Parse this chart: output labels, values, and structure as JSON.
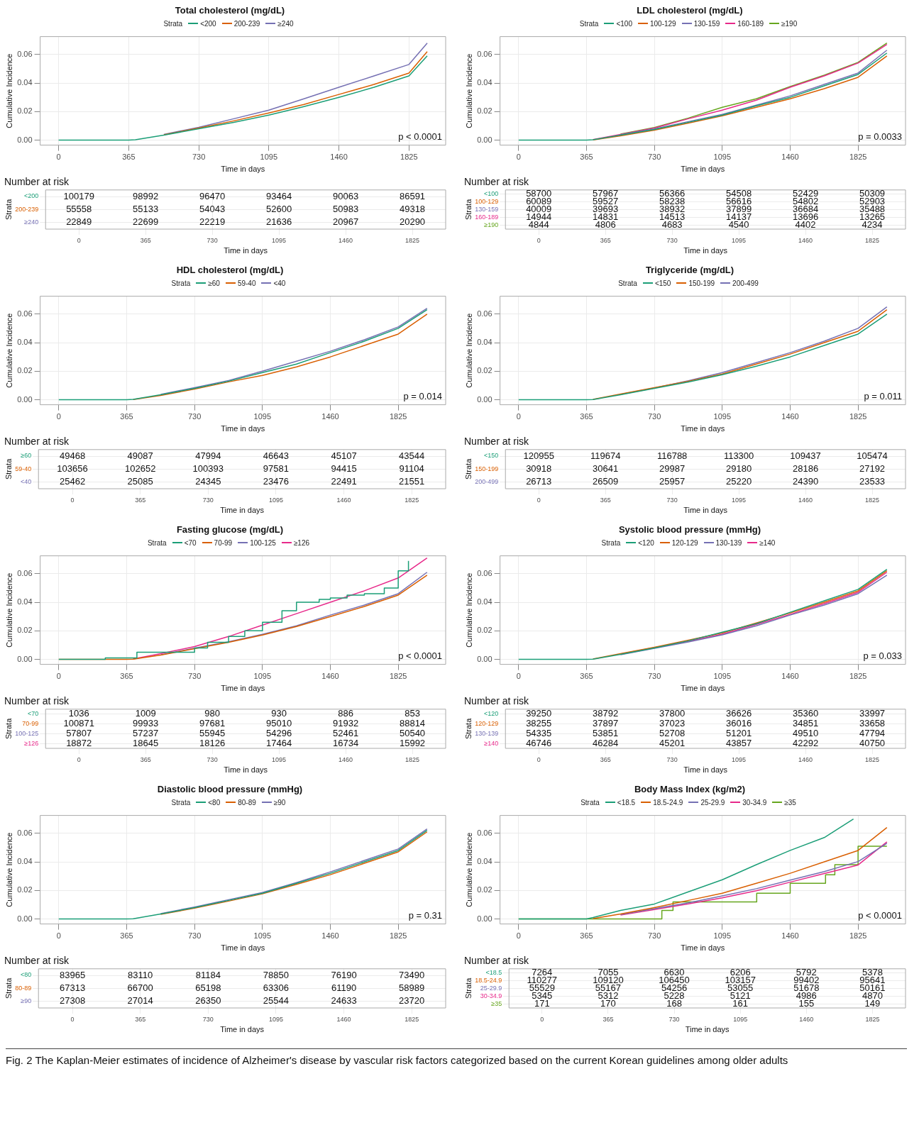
{
  "chart_data": [
    {
      "type": "line",
      "title": "Total cholesterol (mg/dL)",
      "legend_title": "Strata",
      "legend": "top",
      "xlabel": "Time in days",
      "ylabel": "Cumulative Incidence",
      "annotations": [
        "p < 0.0001"
      ],
      "grid": true,
      "xlim": [
        -96,
        2016
      ],
      "xticks": [
        0,
        365,
        730,
        1095,
        1460,
        1825
      ],
      "ylim": [
        -0.0035,
        0.0725
      ],
      "yticks": [
        {
          "value": 0,
          "label": "0.00"
        },
        {
          "value": 0.02,
          "label": "0.02"
        },
        {
          "value": 0.04,
          "label": "0.04"
        },
        {
          "value": 0.06,
          "label": "0.06"
        }
      ],
      "x": [
        0,
        365,
        400,
        548,
        730,
        913,
        1095,
        1278,
        1460,
        1643,
        1825,
        1920
      ],
      "series": [
        {
          "name": "<200",
          "color": "#1b9e77",
          "values": [
            0,
            0,
            0.0003,
            0.0035,
            0.008,
            0.0125,
            0.0175,
            0.0235,
            0.03,
            0.037,
            0.045,
            0.059
          ]
        },
        {
          "name": "200-239",
          "color": "#d95f02",
          "values": [
            null,
            null,
            null,
            0.0037,
            0.0085,
            0.0135,
            0.019,
            0.025,
            0.032,
            0.039,
            0.047,
            0.062
          ]
        },
        {
          "name": "≥240",
          "color": "#7570b3",
          "values": [
            null,
            null,
            null,
            0.004,
            0.009,
            0.015,
            0.021,
            0.029,
            0.037,
            0.045,
            0.053,
            0.068
          ]
        }
      ]
    },
    {
      "type": "heatmap",
      "title": "Number at risk",
      "xlabel": "Time in days",
      "ylabel": "Strata",
      "grid": true,
      "data_labels": true,
      "categories": [
        "0",
        "365",
        "730",
        "1095",
        "1460",
        "1825"
      ],
      "y_categories": [
        "<200",
        "200-239",
        "≥240"
      ],
      "colors": [
        "#1b9e77",
        "#d95f02",
        "#7570b3"
      ],
      "cells": [
        [
          100179,
          98992,
          96470,
          93464,
          90063,
          86591
        ],
        [
          55558,
          55133,
          54043,
          52600,
          50983,
          49318
        ],
        [
          22849,
          22699,
          22219,
          21636,
          20967,
          20290
        ]
      ]
    },
    {
      "type": "line",
      "title": "LDL cholesterol (mg/dL)",
      "legend_title": "Strata",
      "legend": "top",
      "xlabel": "Time in days",
      "ylabel": "Cumulative Incidence",
      "annotations": [
        "p = 0.0033"
      ],
      "grid": true,
      "xlim": [
        -100,
        2080
      ],
      "xticks": [
        0,
        365,
        730,
        1095,
        1460,
        1825
      ],
      "ylim": [
        -0.0035,
        0.0725
      ],
      "yticks": [
        {
          "value": 0,
          "label": "0.00"
        },
        {
          "value": 0.02,
          "label": "0.02"
        },
        {
          "value": 0.04,
          "label": "0.04"
        },
        {
          "value": 0.06,
          "label": "0.06"
        }
      ],
      "x": [
        0,
        365,
        400,
        548,
        730,
        913,
        1095,
        1278,
        1460,
        1643,
        1825,
        1980
      ],
      "series": [
        {
          "name": "<100",
          "color": "#1b9e77",
          "values": [
            0,
            0,
            0.0003,
            0.0035,
            0.0075,
            0.0125,
            0.0175,
            0.024,
            0.03,
            0.038,
            0.046,
            0.061
          ]
        },
        {
          "name": "100-129",
          "color": "#d95f02",
          "values": [
            null,
            null,
            0.0002,
            0.003,
            0.007,
            0.012,
            0.017,
            0.023,
            0.029,
            0.036,
            0.044,
            0.059
          ]
        },
        {
          "name": "130-159",
          "color": "#7570b3",
          "values": [
            null,
            null,
            null,
            0.0037,
            0.0078,
            0.013,
            0.018,
            0.0245,
            0.031,
            0.039,
            0.047,
            0.063
          ]
        },
        {
          "name": "160-189",
          "color": "#e7298a",
          "values": [
            null,
            null,
            0.0004,
            0.004,
            0.0085,
            0.015,
            0.021,
            0.028,
            0.037,
            0.045,
            0.054,
            0.067
          ]
        },
        {
          "name": "≥190",
          "color": "#66a61e",
          "values": [
            null,
            null,
            null,
            0.0042,
            0.0088,
            0.0155,
            0.023,
            0.029,
            0.0375,
            0.0455,
            0.0545,
            0.068
          ]
        }
      ]
    },
    {
      "type": "heatmap",
      "title": "Number at risk",
      "xlabel": "Time in days",
      "ylabel": "Strata",
      "grid": true,
      "data_labels": true,
      "categories": [
        "0",
        "365",
        "730",
        "1095",
        "1460",
        "1825"
      ],
      "y_categories": [
        "<100",
        "100-129",
        "130-159",
        "160-189",
        "≥190"
      ],
      "colors": [
        "#1b9e77",
        "#d95f02",
        "#7570b3",
        "#e7298a",
        "#66a61e"
      ],
      "cells": [
        [
          58700,
          57967,
          56366,
          54508,
          52429,
          50309
        ],
        [
          60089,
          59527,
          58238,
          56616,
          54802,
          52903
        ],
        [
          40009,
          39693,
          38932,
          37899,
          36684,
          35488
        ],
        [
          14944,
          14831,
          14513,
          14137,
          13696,
          13265
        ],
        [
          4844,
          4806,
          4683,
          4540,
          4402,
          4234
        ]
      ]
    },
    {
      "type": "line",
      "title": "HDL cholesterol (mg/dL)",
      "legend_title": "Strata",
      "legend": "top",
      "xlabel": "Time in days",
      "ylabel": "Cumulative Incidence",
      "annotations": [
        "p = 0.014"
      ],
      "grid": true,
      "xlim": [
        -100,
        2080
      ],
      "xticks": [
        0,
        365,
        730,
        1095,
        1460,
        1825
      ],
      "ylim": [
        -0.0035,
        0.0725
      ],
      "yticks": [
        {
          "value": 0,
          "label": "0.00"
        },
        {
          "value": 0.02,
          "label": "0.02"
        },
        {
          "value": 0.04,
          "label": "0.04"
        },
        {
          "value": 0.06,
          "label": "0.06"
        }
      ],
      "x": [
        0,
        365,
        400,
        548,
        730,
        913,
        1095,
        1278,
        1460,
        1643,
        1825,
        1980
      ],
      "series": [
        {
          "name": "≥60",
          "color": "#1b9e77",
          "values": [
            0,
            0,
            0.0003,
            0.0035,
            0.008,
            0.013,
            0.019,
            0.025,
            0.033,
            0.041,
            0.05,
            0.063
          ]
        },
        {
          "name": "59-40",
          "color": "#d95f02",
          "values": [
            null,
            null,
            0.0002,
            0.003,
            0.0075,
            0.0125,
            0.017,
            0.023,
            0.03,
            0.038,
            0.046,
            0.06
          ]
        },
        {
          "name": "<40",
          "color": "#7570b3",
          "values": [
            null,
            null,
            null,
            0.0038,
            0.0085,
            0.0135,
            0.02,
            0.027,
            0.034,
            0.042,
            0.051,
            0.064
          ]
        }
      ]
    },
    {
      "type": "heatmap",
      "title": "Number at risk",
      "xlabel": "Time in days",
      "ylabel": "Strata",
      "grid": true,
      "data_labels": true,
      "categories": [
        "0",
        "365",
        "730",
        "1095",
        "1460",
        "1825"
      ],
      "y_categories": [
        "≥60",
        "59-40",
        "<40"
      ],
      "colors": [
        "#1b9e77",
        "#d95f02",
        "#7570b3"
      ],
      "cells": [
        [
          49468,
          49087,
          47994,
          46643,
          45107,
          43544
        ],
        [
          103656,
          102652,
          100393,
          97581,
          94415,
          91104
        ],
        [
          25462,
          25085,
          24345,
          23476,
          22491,
          21551
        ]
      ]
    },
    {
      "type": "line",
      "title": "Triglyceride (mg/dL)",
      "legend_title": "Strata",
      "legend": "top",
      "xlabel": "Time in days",
      "ylabel": "Cumulative Incidence",
      "annotations": [
        "p = 0.011"
      ],
      "grid": true,
      "xlim": [
        -100,
        2080
      ],
      "xticks": [
        0,
        365,
        730,
        1095,
        1460,
        1825
      ],
      "ylim": [
        -0.0035,
        0.0725
      ],
      "yticks": [
        {
          "value": 0,
          "label": "0.00"
        },
        {
          "value": 0.02,
          "label": "0.02"
        },
        {
          "value": 0.04,
          "label": "0.04"
        },
        {
          "value": 0.06,
          "label": "0.06"
        }
      ],
      "x": [
        0,
        365,
        400,
        548,
        730,
        913,
        1095,
        1278,
        1460,
        1643,
        1825,
        1980
      ],
      "series": [
        {
          "name": "<150",
          "color": "#1b9e77",
          "values": [
            0,
            0,
            0.0002,
            0.0035,
            0.008,
            0.0125,
            0.0175,
            0.0235,
            0.03,
            0.038,
            0.046,
            0.06
          ]
        },
        {
          "name": "150-199",
          "color": "#d95f02",
          "values": [
            null,
            null,
            0.0003,
            0.004,
            0.0085,
            0.013,
            0.018,
            0.025,
            0.032,
            0.04,
            0.048,
            0.063
          ]
        },
        {
          "name": "200-499",
          "color": "#7570b3",
          "values": [
            null,
            null,
            null,
            0.0037,
            0.0082,
            0.0133,
            0.019,
            0.026,
            0.033,
            0.041,
            0.05,
            0.065
          ]
        }
      ]
    },
    {
      "type": "heatmap",
      "title": "Number at risk",
      "xlabel": "Time in days",
      "ylabel": "Strata",
      "grid": true,
      "data_labels": true,
      "categories": [
        "0",
        "365",
        "730",
        "1095",
        "1460",
        "1825"
      ],
      "y_categories": [
        "<150",
        "150-199",
        "200-499"
      ],
      "colors": [
        "#1b9e77",
        "#d95f02",
        "#7570b3"
      ],
      "cells": [
        [
          120955,
          119674,
          116788,
          113300,
          109437,
          105474
        ],
        [
          30918,
          30641,
          29987,
          29180,
          28186,
          27192
        ],
        [
          26713,
          26509,
          25957,
          25220,
          24390,
          23533
        ]
      ]
    },
    {
      "type": "line",
      "title": "Fasting glucose (mg/dL)",
      "legend_title": "Strata",
      "legend": "top",
      "xlabel": "Time in days",
      "ylabel": "Cumulative Incidence",
      "annotations": [
        "p < 0.0001"
      ],
      "grid": true,
      "xlim": [
        -100,
        2080
      ],
      "xticks": [
        0,
        365,
        730,
        1095,
        1460,
        1825
      ],
      "ylim": [
        -0.0035,
        0.0725
      ],
      "yticks": [
        {
          "value": 0,
          "label": "0.00"
        },
        {
          "value": 0.02,
          "label": "0.02"
        },
        {
          "value": 0.04,
          "label": "0.04"
        },
        {
          "value": 0.06,
          "label": "0.06"
        }
      ],
      "x": [
        0,
        365,
        400,
        548,
        730,
        913,
        1095,
        1278,
        1460,
        1643,
        1825,
        1980
      ],
      "series": [
        {
          "name": "<70",
          "color": "#1b9e77",
          "type": "step",
          "x": [
            0,
            250,
            420,
            550,
            730,
            800,
            913,
            1000,
            1095,
            1200,
            1278,
            1400,
            1460,
            1550,
            1643,
            1750,
            1825,
            1880
          ],
          "values": [
            0,
            0.001,
            0.005,
            0.005,
            0.008,
            0.012,
            0.016,
            0.02,
            0.026,
            0.034,
            0.04,
            0.042,
            0.043,
            0.045,
            0.046,
            0.05,
            0.062,
            0.069
          ]
        },
        {
          "name": "70-99",
          "color": "#d95f02",
          "values": [
            0,
            0,
            0.0002,
            0.003,
            0.0075,
            0.012,
            0.017,
            0.023,
            0.03,
            0.037,
            0.045,
            0.059
          ]
        },
        {
          "name": "100-125",
          "color": "#7570b3",
          "values": [
            null,
            null,
            null,
            0.0032,
            0.0078,
            0.0123,
            0.0175,
            0.0235,
            0.031,
            0.038,
            0.046,
            0.061
          ]
        },
        {
          "name": "≥126",
          "color": "#e7298a",
          "values": [
            null,
            null,
            0.0003,
            0.004,
            0.009,
            0.016,
            0.024,
            0.032,
            0.04,
            0.048,
            0.057,
            0.071
          ]
        }
      ]
    },
    {
      "type": "heatmap",
      "title": "Number at risk",
      "xlabel": "Time in days",
      "ylabel": "Strata",
      "grid": true,
      "data_labels": true,
      "categories": [
        "0",
        "365",
        "730",
        "1095",
        "1460",
        "1825"
      ],
      "y_categories": [
        "<70",
        "70-99",
        "100-125",
        "≥126"
      ],
      "colors": [
        "#1b9e77",
        "#d95f02",
        "#7570b3",
        "#e7298a"
      ],
      "cells": [
        [
          1036,
          1009,
          980,
          930,
          886,
          853
        ],
        [
          100871,
          99933,
          97681,
          95010,
          91932,
          88814
        ],
        [
          57807,
          57237,
          55945,
          54296,
          52461,
          50540
        ],
        [
          18872,
          18645,
          18126,
          17464,
          16734,
          15992
        ]
      ]
    },
    {
      "type": "line",
      "title": "Systolic blood pressure (mmHg)",
      "legend_title": "Strata",
      "legend": "top",
      "xlabel": "Time in days",
      "ylabel": "Cumulative Incidence",
      "annotations": [
        "p = 0.033"
      ],
      "grid": true,
      "xlim": [
        -100,
        2080
      ],
      "xticks": [
        0,
        365,
        730,
        1095,
        1460,
        1825
      ],
      "ylim": [
        -0.0035,
        0.0725
      ],
      "yticks": [
        {
          "value": 0,
          "label": "0.00"
        },
        {
          "value": 0.02,
          "label": "0.02"
        },
        {
          "value": 0.04,
          "label": "0.04"
        },
        {
          "value": 0.06,
          "label": "0.06"
        }
      ],
      "x": [
        0,
        365,
        400,
        548,
        730,
        913,
        1095,
        1278,
        1460,
        1643,
        1825,
        1980
      ],
      "series": [
        {
          "name": "<120",
          "color": "#1b9e77",
          "values": [
            0,
            0,
            0.0002,
            0.0035,
            0.008,
            0.013,
            0.019,
            0.025,
            0.033,
            0.041,
            0.049,
            0.063
          ]
        },
        {
          "name": "120-129",
          "color": "#d95f02",
          "values": [
            null,
            null,
            0.0003,
            0.004,
            0.0085,
            0.0135,
            0.0185,
            0.0255,
            0.0325,
            0.04,
            0.048,
            0.062
          ]
        },
        {
          "name": "130-139",
          "color": "#7570b3",
          "values": [
            null,
            null,
            null,
            0.0032,
            0.0077,
            0.0122,
            0.0172,
            0.0235,
            0.031,
            0.038,
            0.046,
            0.059
          ]
        },
        {
          "name": "≥140",
          "color": "#e7298a",
          "values": [
            null,
            null,
            null,
            0.0038,
            0.0082,
            0.0127,
            0.0177,
            0.0245,
            0.0315,
            0.039,
            0.047,
            0.061
          ]
        }
      ]
    },
    {
      "type": "heatmap",
      "title": "Number at risk",
      "xlabel": "Time in days",
      "ylabel": "Strata",
      "grid": true,
      "data_labels": true,
      "categories": [
        "0",
        "365",
        "730",
        "1095",
        "1460",
        "1825"
      ],
      "y_categories": [
        "<120",
        "120-129",
        "130-139",
        "≥140"
      ],
      "colors": [
        "#1b9e77",
        "#d95f02",
        "#7570b3",
        "#e7298a"
      ],
      "cells": [
        [
          39250,
          38792,
          37800,
          36626,
          35360,
          33997
        ],
        [
          38255,
          37897,
          37023,
          36016,
          34851,
          33658
        ],
        [
          54335,
          53851,
          52708,
          51201,
          49510,
          47794
        ],
        [
          46746,
          46284,
          45201,
          43857,
          42292,
          40750
        ]
      ]
    },
    {
      "type": "line",
      "title": "Diastolic blood pressure (mmHg)",
      "legend_title": "Strata",
      "legend": "top",
      "xlabel": "Time in days",
      "ylabel": "Cumulative Incidence",
      "annotations": [
        "p = 0.31"
      ],
      "grid": true,
      "xlim": [
        -100,
        2080
      ],
      "xticks": [
        0,
        365,
        730,
        1095,
        1460,
        1825
      ],
      "ylim": [
        -0.0035,
        0.0725
      ],
      "yticks": [
        {
          "value": 0,
          "label": "0.00"
        },
        {
          "value": 0.02,
          "label": "0.02"
        },
        {
          "value": 0.04,
          "label": "0.04"
        },
        {
          "value": 0.06,
          "label": "0.06"
        }
      ],
      "x": [
        0,
        365,
        400,
        548,
        730,
        913,
        1095,
        1278,
        1460,
        1643,
        1825,
        1980
      ],
      "series": [
        {
          "name": "<80",
          "color": "#1b9e77",
          "values": [
            0,
            0,
            0.0002,
            0.0035,
            0.008,
            0.013,
            0.018,
            0.025,
            0.032,
            0.04,
            0.048,
            0.062
          ]
        },
        {
          "name": "80-89",
          "color": "#d95f02",
          "values": [
            null,
            null,
            null,
            0.0032,
            0.0076,
            0.0125,
            0.0176,
            0.0242,
            0.031,
            0.039,
            0.047,
            0.061
          ]
        },
        {
          "name": "≥90",
          "color": "#7570b3",
          "values": [
            null,
            null,
            null,
            0.0038,
            0.0084,
            0.0135,
            0.0185,
            0.0255,
            0.033,
            0.041,
            0.049,
            0.063
          ]
        }
      ]
    },
    {
      "type": "heatmap",
      "title": "Number at risk",
      "xlabel": "Time in days",
      "ylabel": "Strata",
      "grid": true,
      "data_labels": true,
      "categories": [
        "0",
        "365",
        "730",
        "1095",
        "1460",
        "1825"
      ],
      "y_categories": [
        "<80",
        "80-89",
        "≥90"
      ],
      "colors": [
        "#1b9e77",
        "#d95f02",
        "#7570b3"
      ],
      "cells": [
        [
          83965,
          83110,
          81184,
          78850,
          76190,
          73490
        ],
        [
          67313,
          66700,
          65198,
          63306,
          61190,
          58989
        ],
        [
          27308,
          27014,
          26350,
          25544,
          24633,
          23720
        ]
      ]
    },
    {
      "type": "line",
      "title": "Body Mass Index (kg/m2)",
      "legend_title": "Strata",
      "legend": "top",
      "xlabel": "Time in days",
      "ylabel": "Cumulative Incidence",
      "annotations": [
        "p < 0.0001"
      ],
      "grid": true,
      "xlim": [
        -100,
        2080
      ],
      "xticks": [
        0,
        365,
        730,
        1095,
        1460,
        1825
      ],
      "ylim": [
        -0.0035,
        0.0725
      ],
      "yticks": [
        {
          "value": 0,
          "label": "0.00"
        },
        {
          "value": 0.02,
          "label": "0.02"
        },
        {
          "value": 0.04,
          "label": "0.04"
        },
        {
          "value": 0.06,
          "label": "0.06"
        }
      ],
      "x": [
        400,
        548,
        730,
        913,
        1095,
        1278,
        1460,
        1643,
        1825,
        1980
      ],
      "series": [
        {
          "name": "<18.5",
          "color": "#1b9e77",
          "x": [
            0,
            365,
            400,
            548,
            730,
            913,
            1095,
            1278,
            1460,
            1643,
            1800
          ],
          "values": [
            0,
            0,
            0.001,
            0.006,
            0.0105,
            0.019,
            0.0275,
            0.038,
            0.048,
            0.057,
            0.07
          ]
        },
        {
          "name": "18.5-24.9",
          "color": "#d95f02",
          "values": [
            0.0003,
            0.0035,
            0.008,
            0.013,
            0.018,
            0.025,
            0.032,
            0.04,
            0.048,
            0.064
          ]
        },
        {
          "name": "25-29.9",
          "color": "#7570b3",
          "values": [
            null,
            0.0031,
            0.0072,
            0.0113,
            0.0162,
            0.0212,
            0.0272,
            0.0332,
            0.0402,
            0.053
          ]
        },
        {
          "name": "30-34.9",
          "color": "#e7298a",
          "values": [
            null,
            0.0027,
            0.0066,
            0.0106,
            0.0148,
            0.0198,
            0.0258,
            0.0318,
            0.0378,
            0.054
          ]
        },
        {
          "name": "≥35",
          "color": "#66a61e",
          "type": "step",
          "x": [
            0,
            770,
            830,
            1280,
            1460,
            1650,
            1700,
            1825,
            1980
          ],
          "values": [
            0,
            0.006,
            0.012,
            0.018,
            0.025,
            0.031,
            0.038,
            0.051,
            0.051
          ]
        }
      ]
    },
    {
      "type": "heatmap",
      "title": "Number at risk",
      "xlabel": "Time in days",
      "ylabel": "Strata",
      "grid": true,
      "data_labels": true,
      "categories": [
        "0",
        "365",
        "730",
        "1095",
        "1460",
        "1825"
      ],
      "y_categories": [
        "<18.5",
        "18.5-24.9",
        "25-29.9",
        "30-34.9",
        "≥35"
      ],
      "colors": [
        "#1b9e77",
        "#d95f02",
        "#7570b3",
        "#e7298a",
        "#66a61e"
      ],
      "annotations": [
        "Fig. 2 The Kaplan-Meier estimates of incidence of Alzheimer's disease by vascular risk factors categorized based on the current Korean guidelines among older adults"
      ],
      "cells": [
        [
          7264,
          7055,
          6630,
          6206,
          5792,
          5378
        ],
        [
          110277,
          109120,
          106450,
          103157,
          99402,
          95641
        ],
        [
          55529,
          55167,
          54256,
          53055,
          51678,
          50161
        ],
        [
          5345,
          5312,
          5228,
          5121,
          4986,
          4870
        ],
        [
          171,
          170,
          168,
          161,
          155,
          149
        ]
      ]
    }
  ]
}
